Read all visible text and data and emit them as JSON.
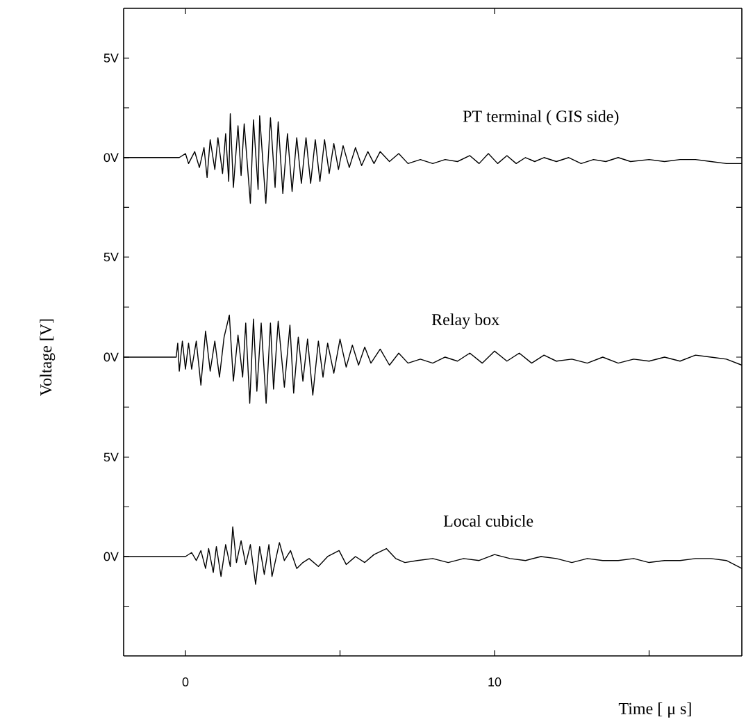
{
  "chart_data": [
    {
      "type": "line",
      "xlim": [
        -2,
        18
      ],
      "xticks": [
        {
          "value": 0,
          "label": null
        },
        {
          "value": 10,
          "label": null
        }
      ],
      "ylim": [
        -5,
        7.5
      ],
      "yticks": [
        {
          "value": -2.5,
          "label": null
        },
        {
          "value": 0,
          "label": "0V"
        },
        {
          "value": 2.5,
          "label": null
        },
        {
          "value": 5,
          "label": "5V"
        }
      ],
      "tick_labels": "y",
      "series": [
        {
          "name": "PT terminal ( GIS side)",
          "color": "#000000",
          "x": [
            -2,
            -0.2,
            0.0,
            0.1,
            0.3,
            0.45,
            0.6,
            0.7,
            0.8,
            0.95,
            1.05,
            1.2,
            1.3,
            1.4,
            1.45,
            1.55,
            1.7,
            1.8,
            1.9,
            2.1,
            2.2,
            2.35,
            2.4,
            2.6,
            2.75,
            2.9,
            3.0,
            3.15,
            3.3,
            3.45,
            3.6,
            3.75,
            3.9,
            4.05,
            4.2,
            4.35,
            4.5,
            4.65,
            4.8,
            4.95,
            5.1,
            5.3,
            5.5,
            5.7,
            5.9,
            6.1,
            6.3,
            6.6,
            6.9,
            7.2,
            7.6,
            8.0,
            8.4,
            8.8,
            9.2,
            9.5,
            9.8,
            10.1,
            10.4,
            10.7,
            11.0,
            11.3,
            11.6,
            12.0,
            12.4,
            12.8,
            13.2,
            13.6,
            14.0,
            14.4,
            15.0,
            15.5,
            16.0,
            16.5,
            17.0,
            17.5,
            18
          ],
          "values": [
            0,
            0,
            0.2,
            -0.3,
            0.3,
            -0.5,
            0.5,
            -1.0,
            0.9,
            -0.6,
            1.0,
            -0.8,
            1.2,
            -1.2,
            2.2,
            -1.5,
            1.6,
            -0.9,
            1.7,
            -2.3,
            1.9,
            -1.6,
            2.1,
            -2.3,
            2.0,
            -1.5,
            1.8,
            -1.8,
            1.2,
            -1.7,
            1.0,
            -1.3,
            1.0,
            -1.3,
            0.9,
            -1.2,
            0.9,
            -0.8,
            0.7,
            -0.6,
            0.6,
            -0.5,
            0.5,
            -0.4,
            0.3,
            -0.3,
            0.3,
            -0.2,
            0.2,
            -0.3,
            -0.1,
            -0.3,
            -0.1,
            -0.2,
            0.1,
            -0.3,
            0.2,
            -0.3,
            0.1,
            -0.3,
            0.0,
            -0.2,
            0.0,
            -0.2,
            0.0,
            -0.3,
            -0.1,
            -0.2,
            0.0,
            -0.2,
            -0.1,
            -0.2,
            -0.1,
            -0.1,
            -0.2,
            -0.3,
            -0.3
          ]
        }
      ]
    },
    {
      "type": "line",
      "xlim": [
        -2,
        18
      ],
      "ylim": [
        -5,
        5
      ],
      "yticks": [
        {
          "value": -2.5,
          "label": null
        },
        {
          "value": 0,
          "label": "0V"
        },
        {
          "value": 2.5,
          "label": null
        },
        {
          "value": 5,
          "label": "5V"
        }
      ],
      "tick_labels": "y",
      "ylabel": "Voltage [V]",
      "series": [
        {
          "name": "Relay box",
          "color": "#000000",
          "x": [
            -2,
            -0.3,
            -0.25,
            -0.2,
            -0.1,
            0.0,
            0.1,
            0.2,
            0.35,
            0.5,
            0.65,
            0.8,
            0.95,
            1.1,
            1.25,
            1.42,
            1.55,
            1.7,
            1.85,
            1.95,
            2.08,
            2.2,
            2.31,
            2.45,
            2.61,
            2.75,
            2.85,
            3.0,
            3.2,
            3.38,
            3.5,
            3.65,
            3.8,
            3.95,
            4.12,
            4.3,
            4.45,
            4.6,
            4.8,
            5.0,
            5.2,
            5.4,
            5.6,
            5.8,
            6.0,
            6.3,
            6.6,
            6.9,
            7.2,
            7.6,
            8.0,
            8.4,
            8.8,
            9.2,
            9.6,
            10.0,
            10.4,
            10.8,
            11.2,
            11.6,
            12.0,
            12.5,
            13.0,
            13.5,
            14.0,
            14.5,
            15.0,
            15.5,
            16.0,
            16.5,
            17.0,
            17.5,
            18
          ],
          "values": [
            0,
            0,
            0.7,
            -0.7,
            0.8,
            -0.6,
            0.7,
            -0.6,
            0.8,
            -1.4,
            1.3,
            -0.7,
            0.8,
            -1.0,
            1.0,
            2.1,
            -1.2,
            1.1,
            -1.0,
            1.7,
            -2.3,
            1.9,
            -1.7,
            1.7,
            -2.3,
            1.7,
            -1.6,
            1.8,
            -1.5,
            1.6,
            -1.8,
            1.0,
            -1.2,
            0.9,
            -1.9,
            0.8,
            -1.0,
            0.7,
            -0.8,
            0.9,
            -0.5,
            0.6,
            -0.4,
            0.5,
            -0.3,
            0.4,
            -0.4,
            0.2,
            -0.3,
            -0.1,
            -0.3,
            0.0,
            -0.2,
            0.2,
            -0.3,
            0.3,
            -0.2,
            0.2,
            -0.3,
            0.1,
            -0.2,
            -0.1,
            -0.3,
            0.0,
            -0.3,
            -0.1,
            -0.2,
            0.0,
            -0.2,
            0.1,
            0.0,
            -0.1,
            -0.4
          ]
        }
      ]
    },
    {
      "type": "line",
      "xlim": [
        -2,
        18
      ],
      "xticks": [
        0,
        {
          "value": 5,
          "label": null
        },
        10,
        {
          "value": 15,
          "label": null
        }
      ],
      "ylim": [
        -5,
        5
      ],
      "yticks": [
        {
          "value": -2.5,
          "label": null
        },
        {
          "value": 0,
          "label": "0V"
        },
        {
          "value": 2.5,
          "label": null
        },
        {
          "value": 5,
          "label": "5V"
        }
      ],
      "xlabel": "Time [ μ s]",
      "series": [
        {
          "name": "Local cubicle",
          "color": "#000000",
          "x": [
            -2,
            0.0,
            0.2,
            0.35,
            0.5,
            0.65,
            0.75,
            0.9,
            1.0,
            1.15,
            1.3,
            1.45,
            1.53,
            1.65,
            1.8,
            1.95,
            2.1,
            2.27,
            2.4,
            2.55,
            2.7,
            2.8,
            3.04,
            3.2,
            3.4,
            3.6,
            3.8,
            4.0,
            4.3,
            4.6,
            4.97,
            5.2,
            5.5,
            5.8,
            6.1,
            6.5,
            6.8,
            7.1,
            7.5,
            8.0,
            8.5,
            9.0,
            9.5,
            10.0,
            10.5,
            11.0,
            11.5,
            12.0,
            12.5,
            13.0,
            13.5,
            14.0,
            14.5,
            15.0,
            15.5,
            16.0,
            16.5,
            17.0,
            17.5,
            18
          ],
          "values": [
            0,
            0,
            0.2,
            -0.2,
            0.3,
            -0.6,
            0.4,
            -0.8,
            0.5,
            -1.0,
            0.6,
            -0.5,
            1.5,
            -0.3,
            0.8,
            -0.4,
            0.6,
            -1.4,
            0.5,
            -0.9,
            0.6,
            -1.0,
            0.7,
            -0.2,
            0.3,
            -0.6,
            -0.3,
            -0.1,
            -0.5,
            0.0,
            0.3,
            -0.4,
            0.0,
            -0.3,
            0.1,
            0.4,
            -0.1,
            -0.3,
            -0.2,
            -0.1,
            -0.3,
            -0.1,
            -0.2,
            0.1,
            -0.1,
            -0.2,
            0.0,
            -0.1,
            -0.3,
            -0.1,
            -0.2,
            -0.2,
            -0.1,
            -0.3,
            -0.2,
            -0.2,
            -0.1,
            -0.1,
            -0.2,
            -0.6
          ]
        }
      ]
    }
  ]
}
